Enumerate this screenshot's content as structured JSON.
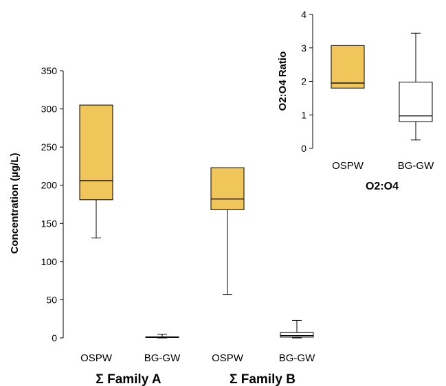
{
  "chart_data": [
    {
      "type": "box",
      "ylabel": "Concentration (µg/L)",
      "ylim": [
        0,
        350
      ],
      "yticks": [
        0,
        50,
        100,
        150,
        200,
        250,
        300,
        350
      ],
      "groups": [
        "Σ Family A",
        "Σ Family B"
      ],
      "categories": [
        "OSPW",
        "BG-GW",
        "OSPW",
        "BG-GW"
      ],
      "boxes": [
        {
          "group": "Σ Family A",
          "category": "OSPW",
          "fill": "#f0c55a",
          "min": 131,
          "q1": 181,
          "median": 206,
          "q3": 305,
          "max": 305
        },
        {
          "group": "Σ Family A",
          "category": "BG-GW",
          "fill": "#ffffff",
          "min": 0,
          "q1": 0.5,
          "median": 1,
          "q3": 1.5,
          "max": 5
        },
        {
          "group": "Σ Family B",
          "category": "OSPW",
          "fill": "#f0c55a",
          "min": 57,
          "q1": 168,
          "median": 182,
          "q3": 223,
          "max": 223
        },
        {
          "group": "Σ Family B",
          "category": "BG-GW",
          "fill": "#ffffff",
          "min": 0,
          "q1": 1,
          "median": 3,
          "q3": 7,
          "max": 23
        }
      ]
    },
    {
      "type": "box",
      "title": "O2:O4",
      "ylabel": "O2:O4 Ratio",
      "ylim": [
        0,
        4
      ],
      "yticks": [
        0,
        1,
        2,
        3,
        4
      ],
      "categories": [
        "OSPW",
        "BG-GW"
      ],
      "boxes": [
        {
          "category": "OSPW",
          "fill": "#f0c55a",
          "min": 1.8,
          "q1": 1.8,
          "median": 1.95,
          "q3": 3.07,
          "max": 3.07
        },
        {
          "category": "BG-GW",
          "fill": "#ffffff",
          "min": 0.25,
          "q1": 0.8,
          "median": 0.97,
          "q3": 1.98,
          "max": 3.44
        }
      ]
    }
  ]
}
